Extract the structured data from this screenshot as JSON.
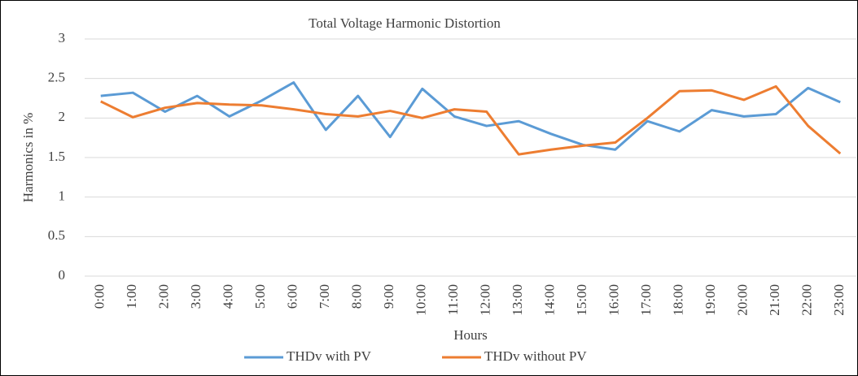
{
  "chart_data": {
    "type": "line",
    "title": "Total Voltage Harmonic Distortion",
    "x_label": "Hours",
    "y_label": "Harmonics in %",
    "categories": [
      "0:00",
      "1:00",
      "2:00",
      "3:00",
      "4:00",
      "5:00",
      "6:00",
      "7:00",
      "8:00",
      "9:00",
      "10:00",
      "11:00",
      "12:00",
      "13:00",
      "14:00",
      "15:00",
      "16:00",
      "17:00",
      "18:00",
      "19:00",
      "20:00",
      "21:00",
      "22:00",
      "23:00"
    ],
    "series": [
      {
        "name": "THDv with PV",
        "color": "#5b9bd5",
        "values": [
          2.28,
          2.32,
          2.08,
          2.28,
          2.02,
          2.22,
          2.45,
          1.85,
          2.28,
          1.76,
          2.37,
          2.02,
          1.9,
          1.96,
          1.8,
          1.66,
          1.6,
          1.96,
          1.83,
          2.1,
          2.02,
          2.05,
          2.38,
          2.2
        ]
      },
      {
        "name": "THDv without PV",
        "color": "#ed7d31",
        "values": [
          2.21,
          2.01,
          2.13,
          2.19,
          2.17,
          2.16,
          2.11,
          2.05,
          2.02,
          2.09,
          2.0,
          2.11,
          2.08,
          1.54,
          1.6,
          1.65,
          1.69,
          2.0,
          2.34,
          2.35,
          2.23,
          2.4,
          1.9,
          1.55
        ]
      }
    ],
    "ylim": [
      0,
      3
    ],
    "yticks": [
      0,
      0.5,
      1,
      1.5,
      2,
      2.5,
      3
    ],
    "grid": true
  }
}
